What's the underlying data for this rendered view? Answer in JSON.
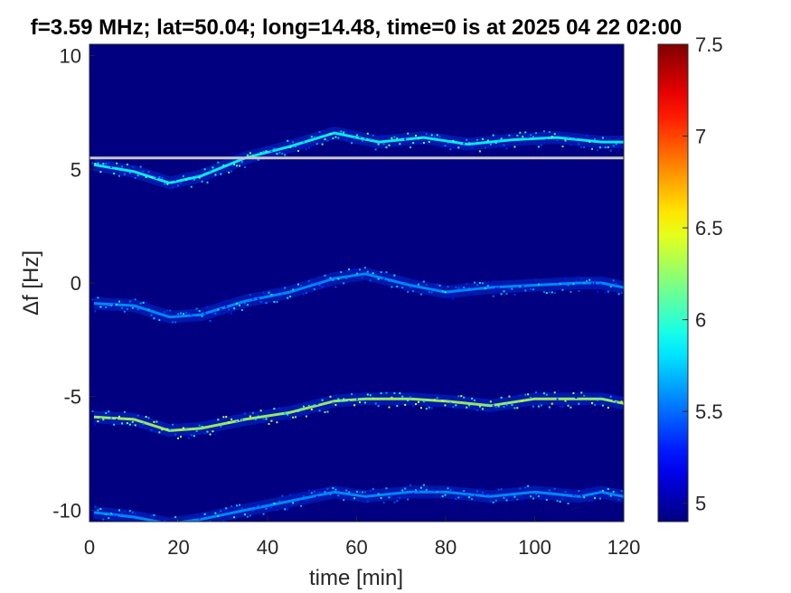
{
  "chart_data": {
    "type": "heatmap",
    "title": "f=3.59 MHz;  lat=50.04; long=14.48, time=0 is at 2025 04 22 02:00",
    "xlabel": "time [min]",
    "ylabel": "Δf [Hz]",
    "xlim": [
      0,
      120
    ],
    "ylim": [
      -10.5,
      10.5
    ],
    "xticks": [
      "0",
      "20",
      "40",
      "60",
      "80",
      "100",
      "120"
    ],
    "yticks": [
      "-10",
      "-5",
      "0",
      "5",
      "10"
    ],
    "colorbar": {
      "colormap": "jet",
      "range": [
        4.9,
        7.5
      ],
      "ticks": [
        "5",
        "5.5",
        "6",
        "6.5",
        "7",
        "7.5"
      ]
    },
    "background_value": 4.9,
    "horizontal_line": {
      "y": 5.5,
      "color": "#c8c8c8"
    },
    "series": [
      {
        "offset": 5,
        "intensity": 5.9,
        "trace": [
          [
            1,
            0.2
          ],
          [
            10,
            -0.1
          ],
          [
            18,
            -0.6
          ],
          [
            25,
            -0.3
          ],
          [
            35,
            0.5
          ],
          [
            45,
            1.0
          ],
          [
            55,
            1.6
          ],
          [
            65,
            1.2
          ],
          [
            75,
            1.4
          ],
          [
            85,
            1.1
          ],
          [
            95,
            1.3
          ],
          [
            105,
            1.4
          ],
          [
            115,
            1.2
          ],
          [
            120,
            1.2
          ]
        ]
      },
      {
        "offset": 0,
        "intensity": 5.6,
        "trace": [
          [
            1,
            -0.9
          ],
          [
            10,
            -1.0
          ],
          [
            18,
            -1.5
          ],
          [
            25,
            -1.4
          ],
          [
            35,
            -0.8
          ],
          [
            45,
            -0.4
          ],
          [
            55,
            0.2
          ],
          [
            62,
            0.4
          ],
          [
            72,
            -0.1
          ],
          [
            80,
            -0.4
          ],
          [
            90,
            -0.2
          ],
          [
            100,
            -0.1
          ],
          [
            110,
            0.0
          ],
          [
            115,
            0.0
          ],
          [
            120,
            -0.2
          ]
        ]
      },
      {
        "offset": -5,
        "intensity": 6.3,
        "trace": [
          [
            1,
            -0.9
          ],
          [
            10,
            -1.0
          ],
          [
            18,
            -1.5
          ],
          [
            25,
            -1.4
          ],
          [
            35,
            -1.0
          ],
          [
            45,
            -0.7
          ],
          [
            55,
            -0.2
          ],
          [
            62,
            -0.1
          ],
          [
            72,
            -0.1
          ],
          [
            80,
            -0.2
          ],
          [
            90,
            -0.4
          ],
          [
            100,
            -0.1
          ],
          [
            110,
            -0.1
          ],
          [
            115,
            -0.1
          ],
          [
            120,
            -0.3
          ]
        ]
      },
      {
        "offset": -10,
        "intensity": 5.6,
        "trace": [
          [
            1,
            -0.1
          ],
          [
            10,
            -0.3
          ],
          [
            18,
            -0.6
          ],
          [
            25,
            -0.4
          ],
          [
            35,
            0.0
          ],
          [
            45,
            0.4
          ],
          [
            55,
            0.8
          ],
          [
            62,
            0.6
          ],
          [
            72,
            0.8
          ],
          [
            80,
            0.8
          ],
          [
            90,
            0.6
          ],
          [
            100,
            0.8
          ],
          [
            110,
            0.6
          ],
          [
            115,
            0.8
          ],
          [
            120,
            0.6
          ]
        ]
      }
    ]
  }
}
